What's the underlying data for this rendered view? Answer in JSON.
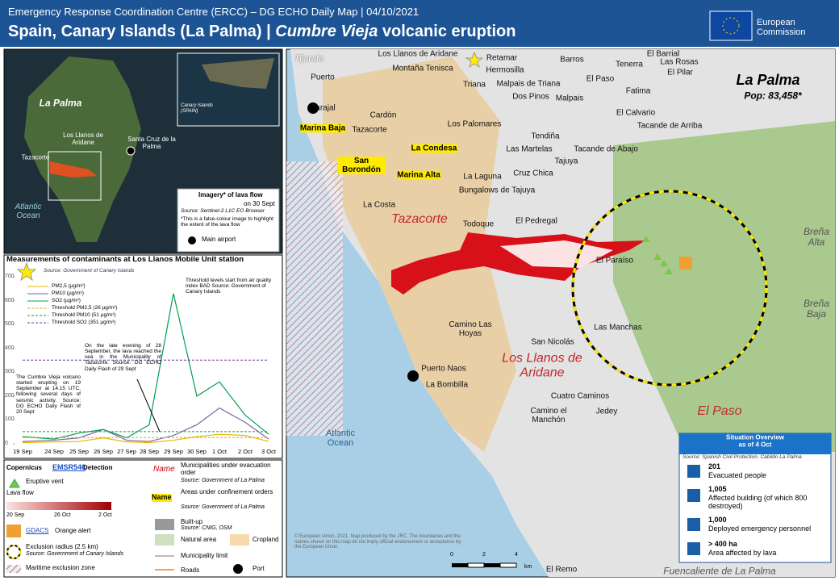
{
  "header": {
    "subtitle": "Emergency Response Coordination Centre (ERCC) – DG ECHO Daily Map | 04/10/2021",
    "title_1": "Spain, Canary Islands (La Palma) |",
    "title_2": "Cumbre Vieja",
    "title_3": "volcanic eruption",
    "logo": "European Commission"
  },
  "inset": {
    "labels": [
      "La Palma",
      "Los Llanos de Aridane",
      "Santa Cruz de la Palma",
      "Tazacorte",
      "Atlantic Ocean"
    ],
    "region_label": "Canary Islands (SPAIN)",
    "box": {
      "title": "Imagery* of lava flow",
      "date": "on 30 Sept",
      "source": "Source: Sentinel-2 L1C EO Browser",
      "note": "*This is a false-colour image to highlight the extent of the lava flow",
      "airport": "Main airport"
    }
  },
  "chart_data": {
    "type": "line",
    "title": "Measurements of contaminants at Los Llanos Mobile Unit station",
    "source": "Source: Government of Canary Islands",
    "categories": [
      "19 Sep",
      "24 Sep",
      "25 Sep",
      "26 Sep",
      "27 Sep",
      "28 Sep",
      "29 Sep",
      "30 Sep",
      "1 Oct",
      "2 Oct",
      "3 Oct"
    ],
    "series": [
      {
        "name": "PM2,5 (µg/m³)",
        "color": "#e6b800",
        "values": [
          5,
          8,
          10,
          25,
          8,
          5,
          15,
          30,
          40,
          35,
          10
        ]
      },
      {
        "name": "PM10 (µg/m³)",
        "color": "#8064a2",
        "values": [
          10,
          15,
          25,
          60,
          15,
          10,
          35,
          80,
          150,
          90,
          20
        ]
      },
      {
        "name": "SO2 (µg/m³)",
        "color": "#00a050",
        "values": [
          30,
          20,
          45,
          60,
          25,
          80,
          630,
          200,
          260,
          120,
          40
        ]
      },
      {
        "name": "Threshold PM2,5 (26 µg/m³)",
        "color": "#f0a000",
        "dashed": true,
        "values": [
          26,
          26,
          26,
          26,
          26,
          26,
          26,
          26,
          26,
          26,
          26
        ]
      },
      {
        "name": "Threshold PM10 (51 µg/m³)",
        "color": "#00a050",
        "dashed": true,
        "values": [
          51,
          51,
          51,
          51,
          51,
          51,
          51,
          51,
          51,
          51,
          51
        ]
      },
      {
        "name": "Threshold SO2 (351 µg/m³)",
        "color": "#7030a0",
        "dashed": true,
        "values": [
          351,
          351,
          351,
          351,
          351,
          351,
          351,
          351,
          351,
          351,
          351
        ]
      }
    ],
    "ylim": [
      0,
      700
    ],
    "yticks": [
      0,
      100,
      200,
      300,
      400,
      500,
      600,
      700
    ],
    "annotations": [
      "Threshold levels start from air quality index BAD Source: Government of Canary Islands",
      "On the late evening of 28 September, the lava reached the sea in the Municipality of Tazacorte. Source: DG ECHO Daily Flash of 29 Sept",
      "The Cumbre Vieja volcano started erupting on 19 September at 14.15 UTC, following several days of seismic activity. Source: DG ECHO Daily Flash of 20 Sept"
    ]
  },
  "legend": {
    "copernicus": "Copernicus",
    "emsr": "EMSR546",
    "detection": "Detection",
    "vent": "Eruptive vent",
    "lava": "Lava flow",
    "lava_dates": [
      "20 Sep",
      "26 Oct",
      "2 Oct"
    ],
    "gdacs": "GDACS",
    "gdacs_alert": "Orange alert",
    "exclusion": "Exclusion radius (2.5 km)",
    "exclusion_source": "Source: Government of Canary Islands",
    "maritime": "Maritime exclusion zone",
    "evac_name": "Name",
    "evac": "Municipalities under evacuation order",
    "evac_source": "Source: Government of La Palma",
    "conf_name": "Name",
    "conf": "Areas under confinement orders",
    "conf_source": "Source: Government of La Palma",
    "builtup": "Built-up",
    "builtup_source": "Source: CNIG, OSM",
    "natural": "Natural area",
    "cropland": "Cropland",
    "limit": "Municipality limit",
    "roads": "Roads",
    "port": "Port"
  },
  "main_map": {
    "labels": [
      "Tijarafe",
      "Los Llanos de Aridane",
      "Retamar",
      "Barros",
      "El Barrial",
      "Montaña Tenisca",
      "Hermosilla",
      "Tenerra",
      "Las Rosas",
      "Puerto",
      "Triana",
      "Malpais de Triana",
      "El Paso",
      "El Pilar",
      "Dos Pinos",
      "Malpais",
      "Fatima",
      "Tarajal",
      "Cardón",
      "El Calvario",
      "Marina Baja",
      "Tazacorte",
      "Los Palomares",
      "Tacande de Arriba",
      "Tendiña",
      "La Condesa",
      "Las Martelas",
      "Tacande de Abajo",
      "San Borondón",
      "Tajuya",
      "La Laguna",
      "Cruz Chica",
      "Marina Alta",
      "Bungalows de Tajuya",
      "La Costa",
      "Tazacorte",
      "Todoque",
      "El Pedregal",
      "El Paraíso",
      "Breña Alta",
      "Camino Las Hoyas",
      "San Nicolás",
      "Las Manchas",
      "Breña Baja",
      "Puerto Naos",
      "Los Llanos de Aridane",
      "La Bombilla",
      "Cuatro Caminos",
      "Camino el Manchón",
      "Jedey",
      "El Paso",
      "Atlantic Ocean",
      "El Remo",
      "Fuencaliente de La Palma"
    ],
    "island": "La Palma",
    "population": "Pop: 83,458*",
    "copyright": "© European Union, 2021. Map produced by the JRC. The boundaries and the names shown on this map do not imply official endorsement or acceptance by the European Union.",
    "scale": [
      "0",
      "2",
      "4",
      "km"
    ]
  },
  "situation": {
    "title": "Situation Overview",
    "date": "as of 4 Oct",
    "source": "Source: Spanish Civil Protection, Cabildo La Palma",
    "items": [
      {
        "value": "201",
        "text": "Evacuated people"
      },
      {
        "value": "1,005",
        "text": "Affected building (of which 800 destroyed)"
      },
      {
        "value": "1,000",
        "text": "Deployed emergency personnel"
      },
      {
        "value": "> 400 ha",
        "text": "Area affected by lava"
      }
    ]
  }
}
